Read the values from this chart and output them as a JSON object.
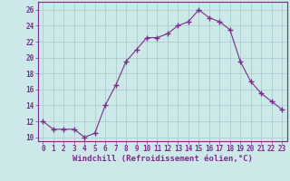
{
  "x": [
    0,
    1,
    2,
    3,
    4,
    5,
    6,
    7,
    8,
    9,
    10,
    11,
    12,
    13,
    14,
    15,
    16,
    17,
    18,
    19,
    20,
    21,
    22,
    23
  ],
  "y": [
    12.0,
    11.0,
    11.0,
    11.0,
    10.0,
    10.5,
    14.0,
    16.5,
    19.5,
    21.0,
    22.5,
    22.5,
    23.0,
    24.0,
    24.5,
    26.0,
    25.0,
    24.5,
    23.5,
    19.5,
    17.0,
    15.5,
    14.5,
    13.5
  ],
  "line_color": "#7b2d8b",
  "marker": "+",
  "marker_size": 4,
  "bg_color": "#cce8e8",
  "grid_color": "#aacece",
  "xlabel": "Windchill (Refroidissement éolien,°C)",
  "xlim": [
    -0.5,
    23.5
  ],
  "ylim": [
    9.5,
    27
  ],
  "yticks": [
    10,
    12,
    14,
    16,
    18,
    20,
    22,
    24,
    26
  ],
  "xticks": [
    0,
    1,
    2,
    3,
    4,
    5,
    6,
    7,
    8,
    9,
    10,
    11,
    12,
    13,
    14,
    15,
    16,
    17,
    18,
    19,
    20,
    21,
    22,
    23
  ],
  "tick_label_size": 5.5,
  "xlabel_size": 6.5,
  "axis_color": "#7b2d8b",
  "tick_color": "#7b2d8b"
}
